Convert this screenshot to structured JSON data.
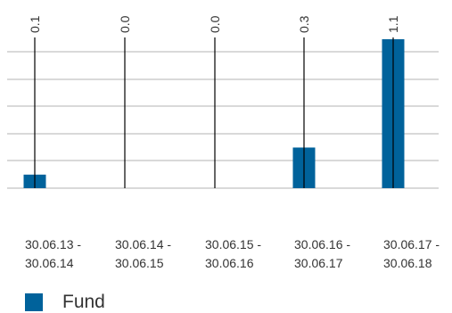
{
  "chart_data": {
    "type": "bar",
    "categories": [
      [
        "30.06.13 -",
        "30.06.14"
      ],
      [
        "30.06.14 -",
        "30.06.15"
      ],
      [
        "30.06.15 -",
        "30.06.16"
      ],
      [
        "30.06.16 -",
        "30.06.17"
      ],
      [
        "30.06.17 -",
        "30.06.18"
      ]
    ],
    "series": [
      {
        "name": "Fund",
        "values": [
          0.1,
          0.0,
          0.0,
          0.3,
          1.1
        ],
        "color": "#00629b"
      }
    ],
    "data_labels": [
      "0.1",
      "0.0",
      "0.0",
      "0.3",
      "1.1"
    ],
    "ylim": [
      0,
      1.1
    ],
    "grid": true,
    "legend_position": "bottom-left"
  }
}
